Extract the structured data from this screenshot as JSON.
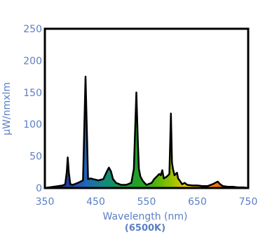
{
  "chart_data": {
    "type": "area",
    "xlabel": "Wavelength (nm)",
    "xlabel_sub": "(6500K)",
    "ylabel": "µW/nmxlm",
    "xlim": [
      350,
      750
    ],
    "ylim": [
      0,
      250
    ],
    "xticks": [
      "350",
      "450",
      "550",
      "650",
      "750"
    ],
    "yticks": [
      "0",
      "50",
      "100",
      "150",
      "200",
      "250"
    ],
    "grid": false,
    "fill_gradient": [
      "#1a1f7a",
      "#1f3aa0",
      "#1f66b8",
      "#138a7a",
      "#1a9a3a",
      "#2aa818",
      "#7fc000",
      "#f0c800",
      "#f59500",
      "#e84a10",
      "#d81e10"
    ],
    "series": [
      {
        "x": [
          350,
          385,
          390,
          393,
          395,
          397,
          400,
          405,
          415,
          425,
          430,
          435,
          440,
          445,
          455,
          465,
          472,
          476,
          480,
          484,
          490,
          500,
          510,
          520,
          525,
          530,
          533,
          535,
          538,
          542,
          546,
          550,
          560,
          565,
          570,
          575,
          578,
          581,
          584,
          590,
          595,
          598,
          600,
          602,
          605,
          610,
          612,
          615,
          620,
          625,
          630,
          640,
          650,
          660,
          670,
          680,
          685,
          690,
          695,
          700,
          710,
          720,
          730,
          740,
          750
        ],
        "values": [
          0,
          4,
          6,
          25,
          48,
          25,
          6,
          5,
          8,
          12,
          175,
          14,
          15,
          14,
          12,
          14,
          26,
          32,
          26,
          14,
          8,
          5,
          5,
          8,
          30,
          150,
          70,
          30,
          18,
          12,
          8,
          5,
          8,
          14,
          18,
          22,
          20,
          28,
          15,
          18,
          22,
          117,
          40,
          30,
          20,
          24,
          15,
          12,
          6,
          8,
          5,
          4,
          4,
          3,
          3,
          6,
          8,
          10,
          6,
          3,
          2,
          2,
          1,
          1,
          0
        ]
      }
    ]
  }
}
